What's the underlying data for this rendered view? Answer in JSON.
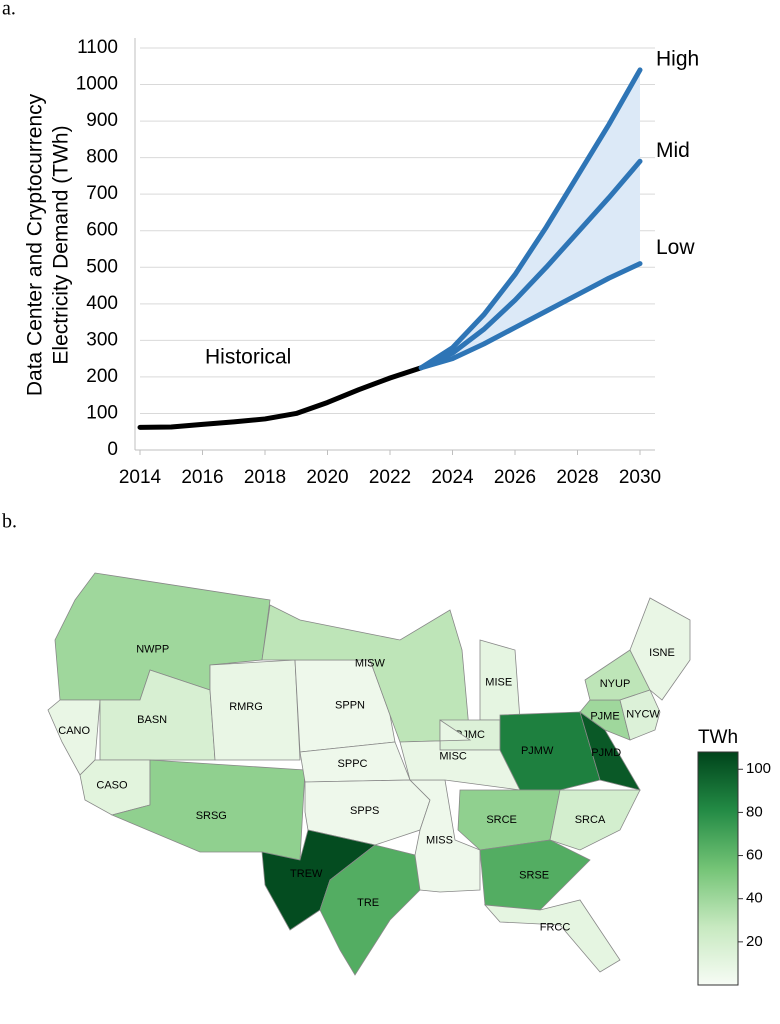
{
  "chart_data": [
    {
      "type": "line",
      "label": "a.",
      "ylabel": [
        "Data Center and Cryptocurrency",
        "Electricity Demand (TWh)"
      ],
      "x": [
        2014,
        2015,
        2016,
        2017,
        2018,
        2019,
        2020,
        2021,
        2022,
        2023,
        2024,
        2025,
        2026,
        2027,
        2028,
        2029,
        2030
      ],
      "series": [
        {
          "name": "Historical",
          "color": "#000000",
          "values": [
            62,
            63,
            70,
            77,
            85,
            100,
            130,
            165,
            197,
            225,
            null,
            null,
            null,
            null,
            null,
            null,
            null
          ]
        },
        {
          "name": "High",
          "color": "#2e75b6",
          "values": [
            null,
            null,
            null,
            null,
            null,
            null,
            null,
            null,
            null,
            225,
            280,
            370,
            480,
            610,
            750,
            890,
            1040
          ]
        },
        {
          "name": "Mid",
          "color": "#2e75b6",
          "values": [
            null,
            null,
            null,
            null,
            null,
            null,
            null,
            null,
            null,
            225,
            265,
            330,
            410,
            500,
            595,
            690,
            790
          ]
        },
        {
          "name": "Low",
          "color": "#2e75b6",
          "values": [
            null,
            null,
            null,
            null,
            null,
            null,
            null,
            null,
            null,
            225,
            250,
            290,
            335,
            380,
            425,
            470,
            510
          ]
        }
      ],
      "fill_between": [
        "High",
        "Low"
      ],
      "fill_color": "#dce9f7",
      "xlim": [
        2014,
        2030
      ],
      "xticks": [
        2014,
        2016,
        2018,
        2020,
        2022,
        2024,
        2026,
        2028,
        2030
      ],
      "ylim": [
        0,
        1100
      ],
      "yticks": [
        0,
        100,
        200,
        300,
        400,
        500,
        600,
        700,
        800,
        900,
        1000,
        1100
      ],
      "grid": true
    },
    {
      "type": "choropleth",
      "label": "b.",
      "colorbar_label": "TWh",
      "colormap": "Greens",
      "clim": [
        0,
        108
      ],
      "cticks": [
        20,
        40,
        60,
        80,
        100
      ],
      "regions": [
        {
          "name": "NWPP",
          "value": 40
        },
        {
          "name": "CANO",
          "value": 8
        },
        {
          "name": "BASN",
          "value": 18
        },
        {
          "name": "CASO",
          "value": 12
        },
        {
          "name": "SRSG",
          "value": 45
        },
        {
          "name": "RMRG",
          "value": 8
        },
        {
          "name": "SPPN",
          "value": 5
        },
        {
          "name": "MISW",
          "value": 30
        },
        {
          "name": "SPPC",
          "value": 5
        },
        {
          "name": "SPPS",
          "value": 5
        },
        {
          "name": "TREW",
          "value": 105
        },
        {
          "name": "TRE",
          "value": 65
        },
        {
          "name": "MISS",
          "value": 5
        },
        {
          "name": "MISE",
          "value": 10
        },
        {
          "name": "PJMC",
          "value": 15
        },
        {
          "name": "MISC",
          "value": 8
        },
        {
          "name": "PJMW",
          "value": 85
        },
        {
          "name": "PJMD",
          "value": 100
        },
        {
          "name": "PJME",
          "value": 40
        },
        {
          "name": "NYUP",
          "value": 30
        },
        {
          "name": "NYCW",
          "value": 15
        },
        {
          "name": "ISNE",
          "value": 8
        },
        {
          "name": "SRCE",
          "value": 45
        },
        {
          "name": "SRCA",
          "value": 20
        },
        {
          "name": "SRSE",
          "value": 65
        },
        {
          "name": "FRCC",
          "value": 10
        }
      ]
    }
  ]
}
